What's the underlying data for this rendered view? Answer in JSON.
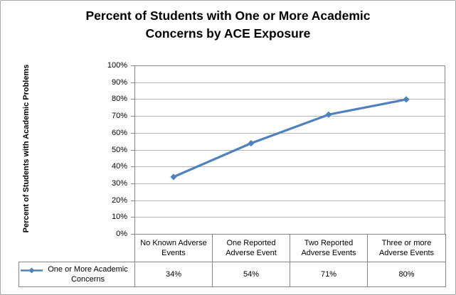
{
  "window": {
    "background": "#FFFFFF",
    "frame_border_color": "#A6A6A6"
  },
  "chart_data": {
    "type": "line",
    "title": "Percent of Students with One or More Academic Concerns by ACE Exposure",
    "title_lines": [
      "Percent of Students with One or More Academic",
      "Concerns by ACE Exposure"
    ],
    "ylabel": "Percent of Students with Academic Problems",
    "xlabel": "",
    "categories": [
      "No Known Adverse Events",
      "One Reported Adverse Event",
      "Two Reported Adverse Events",
      "Three or more Adverse Events"
    ],
    "series": [
      {
        "name": "One or More Academic Concerns",
        "values": [
          34,
          54,
          71,
          80
        ],
        "value_labels": [
          "34%",
          "54%",
          "71%",
          "80%"
        ],
        "color": "#4F81BD",
        "marker": "diamond",
        "line_width": 3.2
      }
    ],
    "ylim": [
      0,
      100
    ],
    "ytick_step": 10,
    "ytick_labels": [
      "0%",
      "10%",
      "20%",
      "30%",
      "40%",
      "50%",
      "60%",
      "70%",
      "80%",
      "90%",
      "100%"
    ],
    "grid": true,
    "legend_position": "data-table-left",
    "colors": {
      "gridline": "#B3B3B3",
      "axis": "#868686",
      "table_border": "#868686",
      "text": "#000000"
    }
  }
}
